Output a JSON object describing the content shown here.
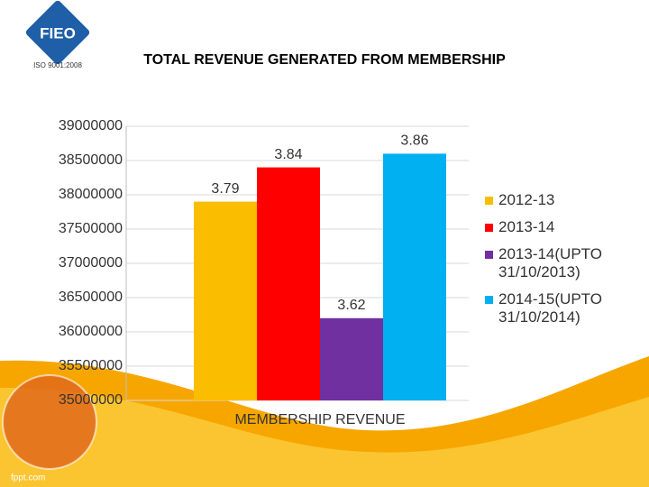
{
  "header": {
    "logo": "FIEO",
    "iso": "ISO 9001:2008",
    "title": "TOTAL REVENUE GENERATED FROM MEMBERSHIP"
  },
  "chart_data": {
    "type": "bar",
    "categories": [
      "MEMBERSHIP REVENUE"
    ],
    "series": [
      {
        "name": "2012-13",
        "color": "#fbbd00",
        "values": [
          37900000
        ],
        "value_labels": [
          "3.79"
        ]
      },
      {
        "name": "2013-14",
        "color": "#ff0000",
        "values": [
          38400000
        ],
        "value_labels": [
          "3.84"
        ]
      },
      {
        "name": "2013-14(UPTO 31/10/2013)",
        "color": "#7030a0",
        "values": [
          36200000
        ],
        "value_labels": [
          "3.62"
        ]
      },
      {
        "name": "2014-15(UPTO 31/10/2014)",
        "color": "#00b0f0",
        "values": [
          38600000
        ],
        "value_labels": [
          "3.86"
        ]
      }
    ],
    "ylim": [
      35000000,
      39000000
    ],
    "yticks": [
      35000000,
      35500000,
      36000000,
      36500000,
      37000000,
      37500000,
      38000000,
      38500000,
      39000000
    ],
    "grid": true,
    "legend": "right"
  },
  "footer": "fppt.com"
}
